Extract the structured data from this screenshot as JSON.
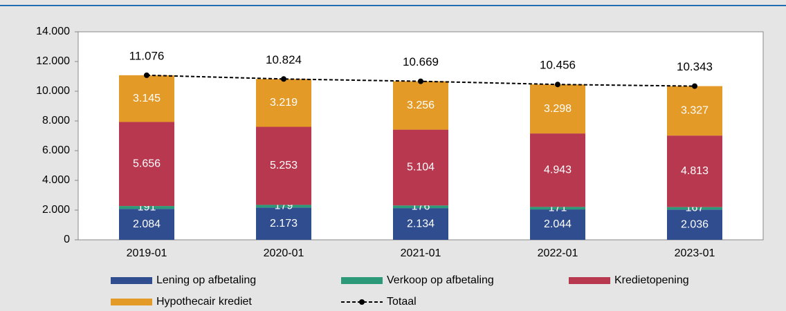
{
  "chart_data": {
    "type": "stacked-bar",
    "categories": [
      "2019-01",
      "2020-01",
      "2021-01",
      "2022-01",
      "2023-01"
    ],
    "series": [
      {
        "name": "Lening op afbetaling",
        "color": "#2f4d8f",
        "values": [
          2084,
          2173,
          2134,
          2044,
          2036
        ],
        "value_labels": [
          "2.084",
          "2.173",
          "2.134",
          "2.044",
          "2.036"
        ]
      },
      {
        "name": "Verkoop op afbetaling",
        "color": "#2c9a78",
        "values": [
          191,
          179,
          176,
          171,
          167
        ]
      },
      {
        "name": "Kredietopening",
        "color": "#b8394f",
        "values": [
          5656,
          5253,
          5104,
          4943,
          4813
        ],
        "value_labels": [
          "5.656",
          "5.253",
          "5.104",
          "4.943",
          "4.813"
        ]
      },
      {
        "name": "Hypothecair krediet",
        "color": "#e49a27",
        "values": [
          3145,
          3219,
          3256,
          3298,
          3327
        ],
        "value_labels": [
          "3.145",
          "3.219",
          "3.256",
          "3.298",
          "3.327"
        ]
      }
    ],
    "total": {
      "name": "Totaal",
      "color": "#000000",
      "values": [
        11076,
        10824,
        10669,
        10456,
        10343
      ],
      "value_labels": [
        "11.076",
        "10.824",
        "10.669",
        "10.456",
        "10.343"
      ]
    },
    "ylim": [
      0,
      14000
    ],
    "yticks": [
      0,
      {
        "value": 2000,
        "label": "2.000"
      },
      {
        "value": 4000,
        "label": "4.000"
      },
      {
        "value": 6000,
        "label": "6.000"
      },
      {
        "value": 8000,
        "label": "8.000"
      },
      {
        "value": 10000,
        "label": "10.000"
      },
      {
        "value": 12000,
        "label": "12.000"
      },
      {
        "value": 14000,
        "label": "14.000"
      }
    ]
  }
}
